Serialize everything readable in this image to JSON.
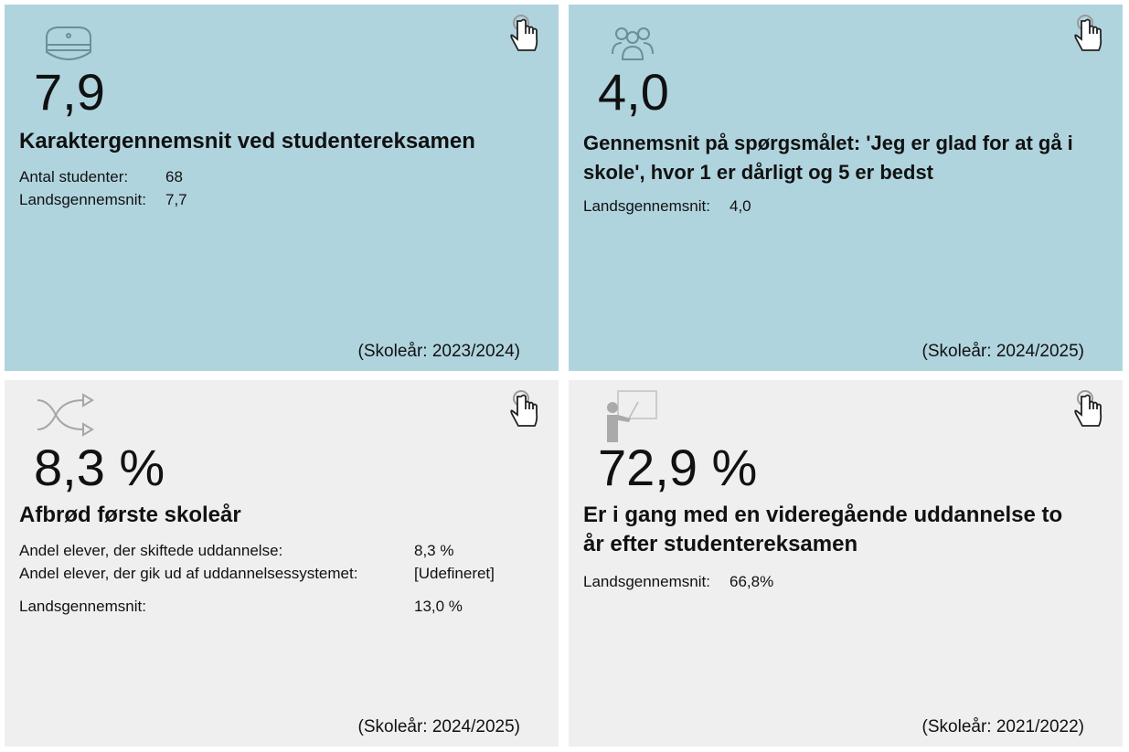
{
  "colors": {
    "blue_card": "#b0d4de",
    "gray_card": "#efefef"
  },
  "cards": [
    {
      "icon": "student-cap-icon",
      "value": "7,9",
      "title": "Karaktergennemsnit ved studentereksamen",
      "rows": [
        {
          "label": "Antal studenter:",
          "value": "68"
        },
        {
          "label": "Landsgennemsnit:",
          "value": "7,7"
        }
      ],
      "year": "(Skoleår: 2023/2024)"
    },
    {
      "icon": "people-group-icon",
      "value": "4,0",
      "title": "Gennemsnit på spørgsmålet: 'Jeg er glad for at gå i skole', hvor 1 er dårligt og 5 er bedst",
      "rows": [
        {
          "label": "Landsgennemsnit:",
          "value": "4,0"
        }
      ],
      "year": "(Skoleår: 2024/2025)"
    },
    {
      "icon": "shuffle-icon",
      "value": "8,3 %",
      "title": "Afbrød første skoleår",
      "rows": [
        {
          "label": "Andel elever, der skiftede uddannelse:",
          "value": "8,3 %"
        },
        {
          "label": "Andel elever, der gik ud af uddannelsessystemet:",
          "value": "[Udefineret]"
        },
        {
          "label": "Landsgennemsnit:",
          "value": "13,0 %"
        }
      ],
      "year": "(Skoleår: 2024/2025)"
    },
    {
      "icon": "teacher-board-icon",
      "value": "72,9 %",
      "title": "Er i gang med en videregående uddannelse to år efter studentereksamen",
      "rows": [
        {
          "label": "Landsgennemsnit:",
          "value": "66,8%"
        }
      ],
      "year": "(Skoleår: 2021/2022)"
    }
  ]
}
